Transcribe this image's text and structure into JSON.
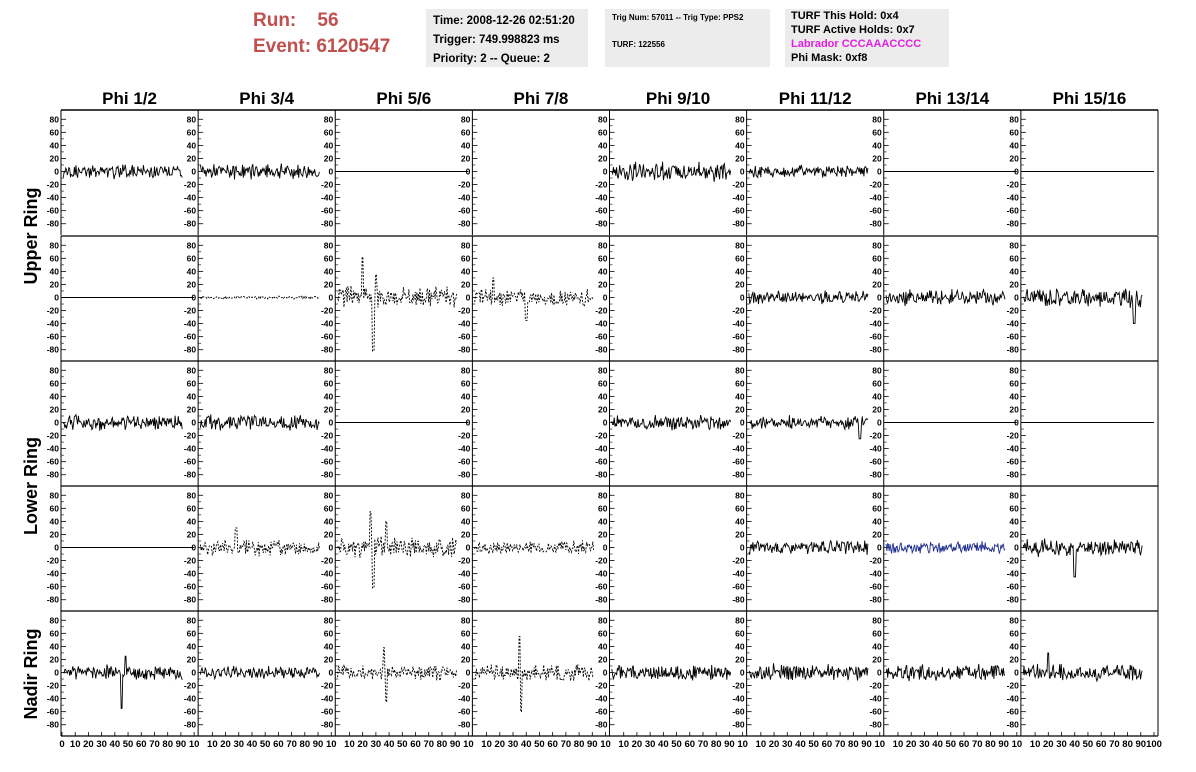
{
  "header": {
    "run_label": "Run:",
    "run_value": "56",
    "event_label": "Event:",
    "event_value": "6120547",
    "time": "Time: 2008-12-26 02:51:20",
    "trigger": "Trigger: 749.998823 ms",
    "priority": "Priority: 2 -- Queue: 2",
    "trig_num": "Trig Num: 57011 -- Trig Type: PPS2",
    "turf": "TURF: 122556",
    "turf_this_hold": "TURF This Hold: 0x4",
    "turf_active_holds": "TURF Active Holds: 0x7",
    "labrador": "Labrador CCCAAACCCC",
    "phi_mask": "Phi Mask: 0xf8"
  },
  "colors": {
    "run_text": "#c0504d",
    "labrador_text": "#e020e0",
    "highlight_trace": "#1f2f8f",
    "trace": "#000000",
    "info_box": "#ececec"
  },
  "chart_data": {
    "type": "line",
    "columns": [
      "Phi 1/2",
      "Phi 3/4",
      "Phi 5/6",
      "Phi 7/8",
      "Phi 9/10",
      "Phi 11/12",
      "Phi 13/14",
      "Phi 15/16"
    ],
    "ring_labels": [
      "Upper Ring",
      "Lower Ring",
      "Nadir Ring"
    ],
    "ylim": [
      -85,
      85
    ],
    "xlim": [
      0,
      100
    ],
    "y_ticks": [
      -80,
      -60,
      -40,
      -20,
      0,
      20,
      40,
      60,
      80
    ],
    "x_ticks": [
      0,
      10,
      20,
      30,
      40,
      50,
      60,
      70,
      80,
      90,
      100
    ],
    "x_ticks_first_panel": [
      "0",
      "10",
      "20",
      "30",
      "40",
      "50",
      "60",
      "70",
      "80",
      "90",
      "10"
    ],
    "x_ticks_panel": [
      "10",
      "20",
      "30",
      "40",
      "50",
      "60",
      "70",
      "80",
      "90",
      "10"
    ],
    "x_ticks_last_panel": [
      "10",
      "20",
      "30",
      "40",
      "50",
      "60",
      "70",
      "80",
      "90",
      "100"
    ],
    "grid": false,
    "x_range_points": 90,
    "panels": [
      [
        {
          "style": "solid",
          "amp": 11,
          "seed": 101,
          "spikes": []
        },
        {
          "style": "solid",
          "amp": 11,
          "seed": 102,
          "spikes": []
        },
        {
          "style": "flat"
        },
        {
          "style": "none"
        },
        {
          "style": "solid",
          "amp": 14,
          "seed": 105,
          "spikes": []
        },
        {
          "style": "solid",
          "amp": 9,
          "seed": 106,
          "spikes": []
        },
        {
          "style": "flat"
        },
        {
          "style": "flat"
        }
      ],
      [
        {
          "style": "flat"
        },
        {
          "style": "dashed",
          "amp": 2,
          "seed": 202,
          "spikes": []
        },
        {
          "style": "dashed",
          "amp": 16,
          "seed": 203,
          "spikes": [
            [
              20,
              62
            ],
            [
              28,
              -82
            ],
            [
              30,
              35
            ]
          ]
        },
        {
          "style": "dashed",
          "amp": 12,
          "seed": 204,
          "spikes": [
            [
              15,
              30
            ],
            [
              40,
              -35
            ]
          ]
        },
        {
          "style": "none"
        },
        {
          "style": "solid",
          "amp": 10,
          "seed": 206,
          "spikes": []
        },
        {
          "style": "solid",
          "amp": 11,
          "seed": 207,
          "spikes": []
        },
        {
          "style": "solid",
          "amp": 14,
          "seed": 208,
          "spikes": [
            [
              85,
              -40
            ]
          ]
        }
      ],
      [
        {
          "style": "solid",
          "amp": 11,
          "seed": 301,
          "spikes": []
        },
        {
          "style": "solid",
          "amp": 11,
          "seed": 302,
          "spikes": []
        },
        {
          "style": "flat"
        },
        {
          "style": "none"
        },
        {
          "style": "solid",
          "amp": 11,
          "seed": 305,
          "spikes": []
        },
        {
          "style": "solid",
          "amp": 10,
          "seed": 306,
          "spikes": [
            [
              85,
              -25
            ]
          ]
        },
        {
          "style": "flat"
        },
        {
          "style": "flat"
        }
      ],
      [
        {
          "style": "flat"
        },
        {
          "style": "dashed",
          "amp": 12,
          "seed": 402,
          "spikes": [
            [
              28,
              30
            ]
          ]
        },
        {
          "style": "dashed",
          "amp": 16,
          "seed": 403,
          "spikes": [
            [
              26,
              55
            ],
            [
              28,
              -62
            ],
            [
              38,
              40
            ]
          ]
        },
        {
          "style": "dashed",
          "amp": 10,
          "seed": 404,
          "spikes": []
        },
        {
          "style": "none"
        },
        {
          "style": "solid",
          "amp": 10,
          "seed": 406,
          "spikes": []
        },
        {
          "style": "highlight",
          "amp": 9,
          "seed": 407,
          "spikes": []
        },
        {
          "style": "solid",
          "amp": 13,
          "seed": 408,
          "spikes": [
            [
              40,
              -45
            ]
          ]
        }
      ],
      [
        {
          "style": "solid",
          "amp": 11,
          "seed": 501,
          "spikes": [
            [
              45,
              -55
            ],
            [
              48,
              25
            ]
          ]
        },
        {
          "style": "solid",
          "amp": 9,
          "seed": 502,
          "spikes": []
        },
        {
          "style": "dashed",
          "amp": 11,
          "seed": 503,
          "spikes": [
            [
              36,
              38
            ],
            [
              38,
              -45
            ]
          ]
        },
        {
          "style": "dashed",
          "amp": 12,
          "seed": 504,
          "spikes": [
            [
              35,
              55
            ],
            [
              36,
              -60
            ]
          ]
        },
        {
          "style": "solid",
          "amp": 11,
          "seed": 505,
          "spikes": []
        },
        {
          "style": "solid",
          "amp": 12,
          "seed": 506,
          "spikes": []
        },
        {
          "style": "solid",
          "amp": 12,
          "seed": 507,
          "spikes": []
        },
        {
          "style": "solid",
          "amp": 12,
          "seed": 508,
          "spikes": [
            [
              20,
              30
            ]
          ]
        }
      ]
    ]
  }
}
